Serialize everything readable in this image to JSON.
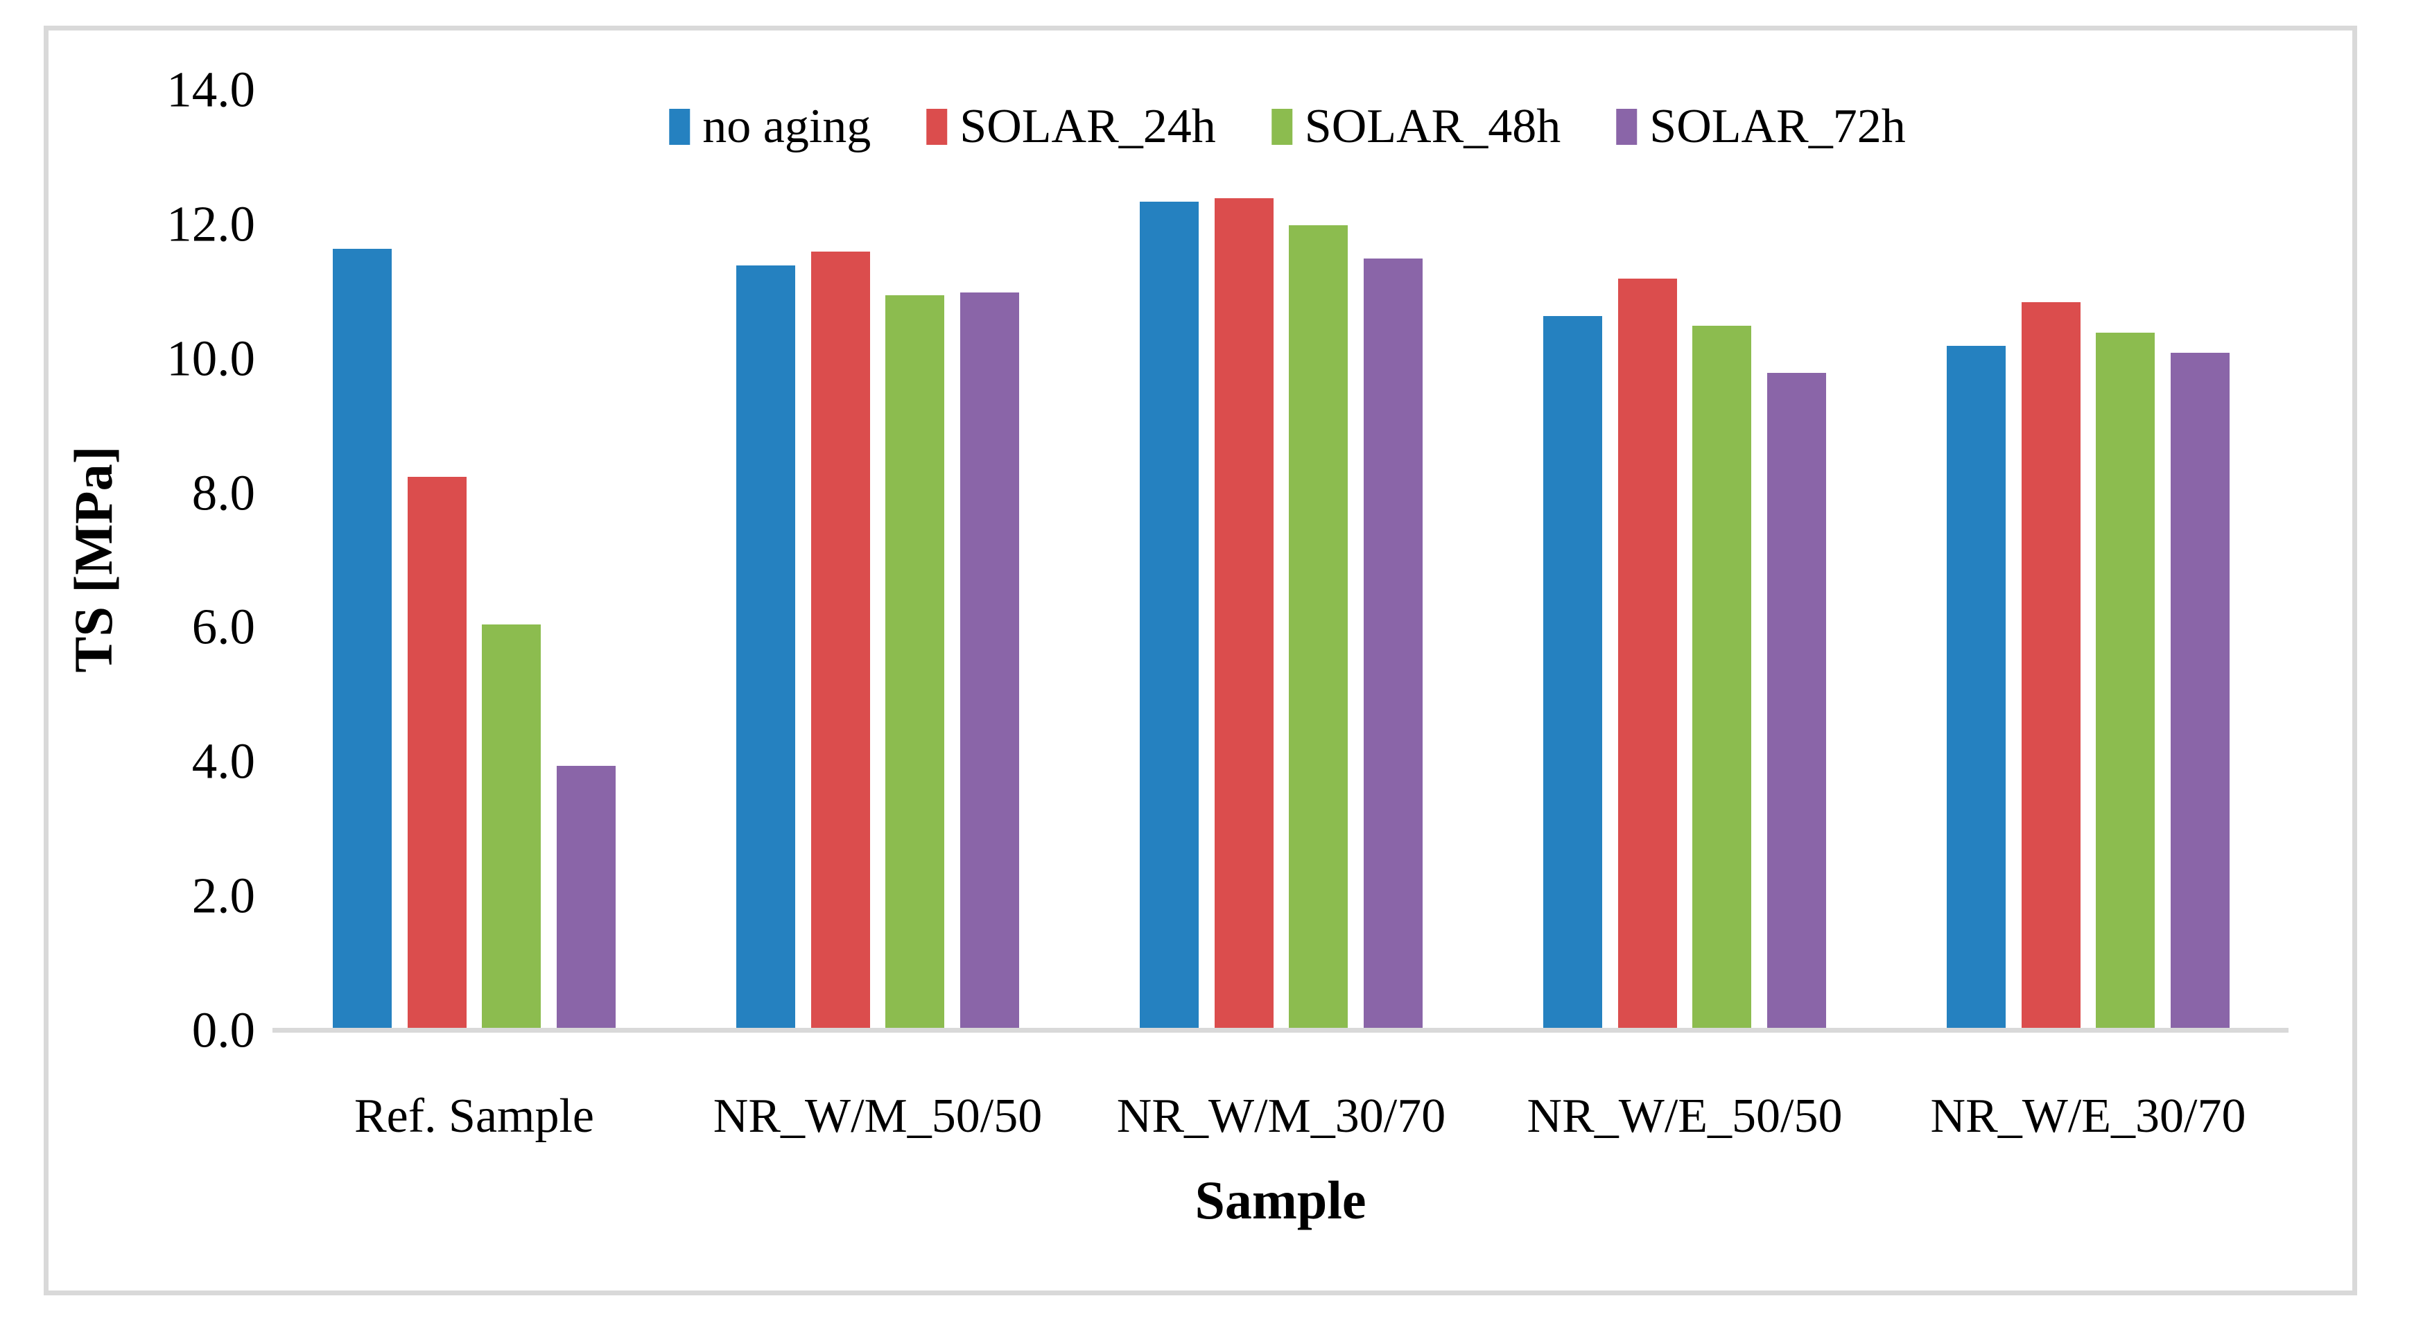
{
  "chart_data": {
    "type": "bar",
    "title": "",
    "xlabel": "Sample",
    "ylabel": "TS [MPa]",
    "ylim": [
      0,
      14
    ],
    "ytick_step": 2,
    "ytick_decimals": 1,
    "grid": false,
    "legend_position": "top-center",
    "categories": [
      "Ref. Sample",
      "NR_W/M_50/50",
      "NR_W/M_30/70",
      "NR_W/E_50/50",
      "NR_W/E_30/70"
    ],
    "series": [
      {
        "name": "no aging",
        "color": "#2581C0",
        "values": [
          11.6,
          11.35,
          12.3,
          10.6,
          10.15
        ]
      },
      {
        "name": "SOLAR_24h",
        "color": "#DB4D4D",
        "values": [
          8.2,
          11.55,
          12.35,
          11.15,
          10.8
        ]
      },
      {
        "name": "SOLAR_48h",
        "color": "#8CBC4F",
        "values": [
          6.0,
          10.9,
          11.95,
          10.45,
          10.35
        ]
      },
      {
        "name": "SOLAR_72h",
        "color": "#8A65A8",
        "values": [
          3.9,
          10.95,
          11.45,
          9.75,
          10.05
        ]
      }
    ]
  },
  "styles": {
    "background": "#FFFFFF",
    "frame_color": "#D9D9D9",
    "axis_line_color": "#D9D9D9",
    "text_color": "#000000"
  }
}
